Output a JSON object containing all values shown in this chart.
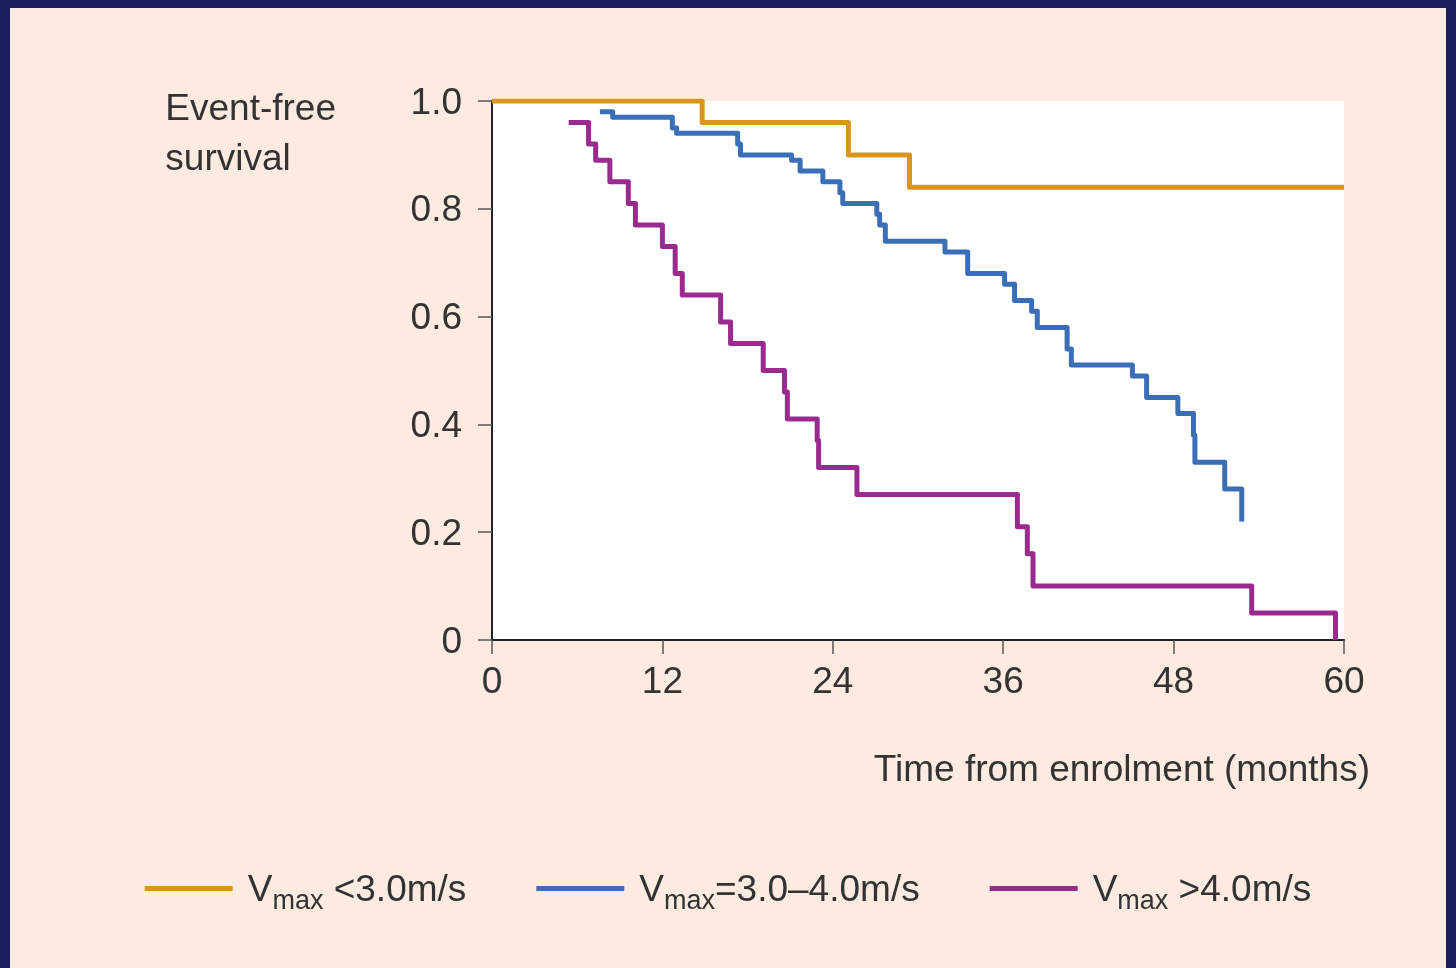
{
  "chart_data": {
    "type": "step",
    "ylabel": "Event-free\nsurvival",
    "xlabel": "Time from enrolment (months)",
    "xlim": [
      0,
      60
    ],
    "xticks": [
      0,
      12,
      24,
      36,
      48,
      60
    ],
    "ylim": [
      0,
      1
    ],
    "yticks": [
      0,
      0.2,
      0.4,
      0.6,
      0.8,
      {
        "value": 1,
        "label": "1.0"
      }
    ],
    "grid": false,
    "legend": "bottom",
    "marker": "none",
    "line_style": "solid",
    "series": [
      {
        "name": "V$_{max}$ <3.0m/s",
        "color": "#d8961f",
        "x": [
          0,
          14.8,
          25.1,
          29.4,
          60
        ],
        "values": [
          1,
          0.96,
          0.9,
          0.84,
          0.84
        ]
      },
      {
        "name": "V$_{max}$=3.0–4.0m/s",
        "color": "#3a6fb8",
        "x": [
          7.6,
          8.5,
          12.7,
          13.0,
          17.3,
          17.5,
          21.1,
          21.7,
          23.3,
          24.5,
          24.7,
          27.1,
          27.3,
          27.7,
          31.9,
          33.5,
          36.1,
          36.8,
          38.0,
          38.4,
          40.5,
          40.8,
          45.1,
          46.1,
          48.3,
          49.4,
          49.5,
          51.6,
          52.8
        ],
        "values": [
          0.98,
          0.97,
          0.95,
          0.94,
          0.92,
          0.9,
          0.89,
          0.87,
          0.85,
          0.83,
          0.81,
          0.79,
          0.77,
          0.74,
          0.72,
          0.68,
          0.66,
          0.63,
          0.61,
          0.58,
          0.54,
          0.51,
          0.49,
          0.45,
          0.42,
          0.38,
          0.33,
          0.28,
          0.22
        ]
      },
      {
        "name": "V$_{max}$ >4.0m/s",
        "color": "#9b2a8e",
        "x": [
          5.4,
          6.8,
          7.3,
          8.3,
          9.6,
          10.1,
          12.0,
          12.9,
          13.4,
          16.1,
          16.8,
          19.1,
          20.6,
          20.8,
          22.9,
          23.0,
          25.7,
          37.0,
          37.7,
          38.1,
          53.5,
          59.4
        ],
        "values": [
          0.96,
          0.92,
          0.89,
          0.85,
          0.81,
          0.77,
          0.73,
          0.68,
          0.64,
          0.59,
          0.55,
          0.5,
          0.46,
          0.41,
          0.37,
          0.32,
          0.27,
          0.21,
          0.16,
          0.1,
          0.05,
          0
        ]
      }
    ]
  }
}
